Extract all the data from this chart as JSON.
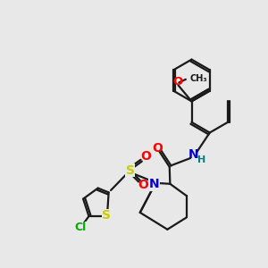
{
  "background_color": "#e8e8e8",
  "bond_color": "#1a1a1a",
  "atom_colors": {
    "O": "#ff0000",
    "N": "#0000cc",
    "S": "#cccc00",
    "Cl": "#00aa00",
    "H": "#008080"
  },
  "figsize": [
    3.0,
    3.0
  ],
  "dpi": 100
}
